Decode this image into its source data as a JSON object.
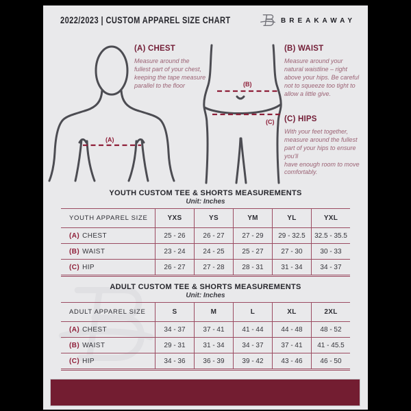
{
  "header": {
    "title": "2022/2023  |  CUSTOM APPAREL SIZE CHART",
    "brand": "BREAKAWAY"
  },
  "instructions": {
    "chest": {
      "heading": "(A) CHEST",
      "body": "Measure around the fullest part of your chest, keeping the tape measure parallel to the floor"
    },
    "waist": {
      "heading": "(B) WAIST",
      "body": "Measure around your natural waistline – right above your hips. Be careful not to squeeze too tight to allow a little give."
    },
    "hips": {
      "heading": "(C) HIPS",
      "body": "With your feet together, measure around the fullest part of your hips to ensure you'll\nhave enough room to move comfortably."
    }
  },
  "figure_labels": {
    "chest": "(A)",
    "waist": "(B)",
    "hips": "(C)"
  },
  "youth_table": {
    "title": "YOUTH CUSTOM TEE & SHORTS MEASUREMENTS",
    "unit": "Unit: Inches",
    "columns": [
      "YOUTH APPAREL SIZE",
      "YXS",
      "YS",
      "YM",
      "YL",
      "YXL"
    ],
    "rows": [
      {
        "prefix": "(A)",
        "label": "CHEST",
        "values": [
          "25 - 26",
          "26 - 27",
          "27 - 29",
          "29 - 32.5",
          "32.5 - 35.5"
        ]
      },
      {
        "prefix": "(B)",
        "label": "WAIST",
        "values": [
          "23 - 24",
          "24 - 25",
          "25 - 27",
          "27 - 30",
          "30 - 33"
        ]
      },
      {
        "prefix": "(C)",
        "label": "HIP",
        "values": [
          "26 - 27",
          "27 - 28",
          "28 - 31",
          "31 - 34",
          "34 - 37"
        ]
      }
    ]
  },
  "adult_table": {
    "title": "ADULT CUSTOM TEE & SHORTS MEASUREMENTS",
    "unit": "Unit: Inches",
    "columns": [
      "ADULT APPAREL SIZE",
      "S",
      "M",
      "L",
      "XL",
      "2XL"
    ],
    "rows": [
      {
        "prefix": "(A)",
        "label": "CHEST",
        "values": [
          "34 - 37",
          "37 - 41",
          "41 - 44",
          "44 - 48",
          "48 - 52"
        ]
      },
      {
        "prefix": "(B)",
        "label": "WAIST",
        "values": [
          "29 - 31",
          "31 - 34",
          "34 - 37",
          "37 - 41",
          "41 - 45.5"
        ]
      },
      {
        "prefix": "(C)",
        "label": "HIP",
        "values": [
          "34 - 36",
          "36 - 39",
          "39 - 42",
          "43 - 46",
          "46 - 50"
        ]
      }
    ]
  },
  "colors": {
    "heading_maroon": "#731d36",
    "footer_bar": "#731d31",
    "table_border": "#9a4a60",
    "dashed_line": "#8e1e38",
    "page_background": "#e9e9eb",
    "letterbox": "#000000"
  }
}
